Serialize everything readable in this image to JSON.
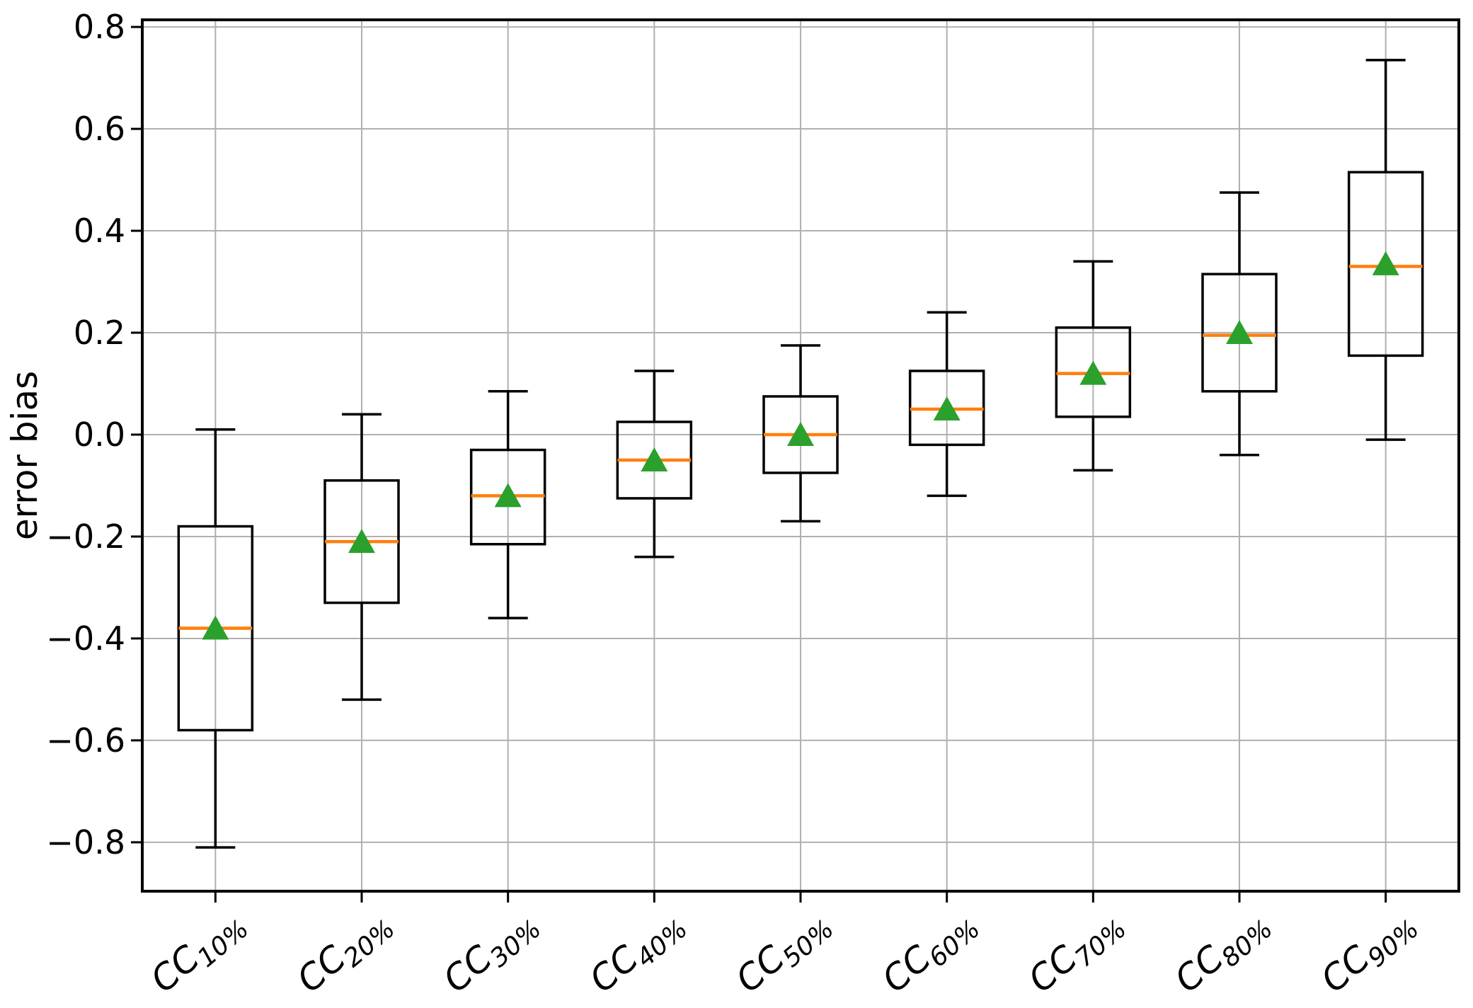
{
  "figure": {
    "ylabel": "error bias",
    "background": "#ffffff"
  },
  "chart_data": {
    "type": "boxplot",
    "title": "",
    "xlabel": "",
    "ylabel": "error bias",
    "grid": true,
    "ylim": [
      -0.896,
      0.814
    ],
    "yticks": {
      "values": [
        0.8,
        0.6,
        0.4,
        0.2,
        0.0,
        -0.2,
        -0.4,
        -0.6,
        -0.8
      ],
      "labels": [
        "0.8",
        "0.6",
        "0.4",
        "0.2",
        "0.0",
        "−0.2",
        "−0.4",
        "−0.6",
        "−0.8"
      ]
    },
    "categories": [
      "CC 10%",
      "CC 20%",
      "CC 30%",
      "CC 40%",
      "CC 50%",
      "CC 60%",
      "CC 70%",
      "CC 80%",
      "CC 90%"
    ],
    "series": [
      {
        "base": "CC",
        "sub": "10%",
        "whislo": -0.81,
        "q1": -0.58,
        "med": -0.38,
        "mean": -0.38,
        "q3": -0.18,
        "whishi": 0.01
      },
      {
        "base": "CC",
        "sub": "20%",
        "whislo": -0.52,
        "q1": -0.33,
        "med": -0.21,
        "mean": -0.21,
        "q3": -0.09,
        "whishi": 0.04
      },
      {
        "base": "CC",
        "sub": "30%",
        "whislo": -0.36,
        "q1": -0.215,
        "med": -0.12,
        "mean": -0.12,
        "q3": -0.03,
        "whishi": 0.085
      },
      {
        "base": "CC",
        "sub": "40%",
        "whislo": -0.24,
        "q1": -0.125,
        "med": -0.05,
        "mean": -0.05,
        "q3": 0.025,
        "whishi": 0.125
      },
      {
        "base": "CC",
        "sub": "50%",
        "whislo": -0.17,
        "q1": -0.075,
        "med": 0.0,
        "mean": 0.0,
        "q3": 0.075,
        "whishi": 0.175
      },
      {
        "base": "CC",
        "sub": "60%",
        "whislo": -0.12,
        "q1": -0.02,
        "med": 0.05,
        "mean": 0.05,
        "q3": 0.125,
        "whishi": 0.24
      },
      {
        "base": "CC",
        "sub": "70%",
        "whislo": -0.07,
        "q1": 0.035,
        "med": 0.12,
        "mean": 0.12,
        "q3": 0.21,
        "whishi": 0.34
      },
      {
        "base": "CC",
        "sub": "80%",
        "whislo": -0.04,
        "q1": 0.085,
        "med": 0.195,
        "mean": 0.2,
        "q3": 0.315,
        "whishi": 0.475
      },
      {
        "base": "CC",
        "sub": "90%",
        "whislo": -0.01,
        "q1": 0.155,
        "med": 0.33,
        "mean": 0.335,
        "q3": 0.515,
        "whishi": 0.735
      }
    ],
    "mean_marker": "triangle-up",
    "colors": {
      "box": "#000000",
      "whisker": "#000000",
      "median": "#ff7f0e",
      "mean_marker": "#2ca02c",
      "grid": "#b0b0b0",
      "spine": "#000000",
      "tick_label": "#000000"
    },
    "legend": null
  }
}
